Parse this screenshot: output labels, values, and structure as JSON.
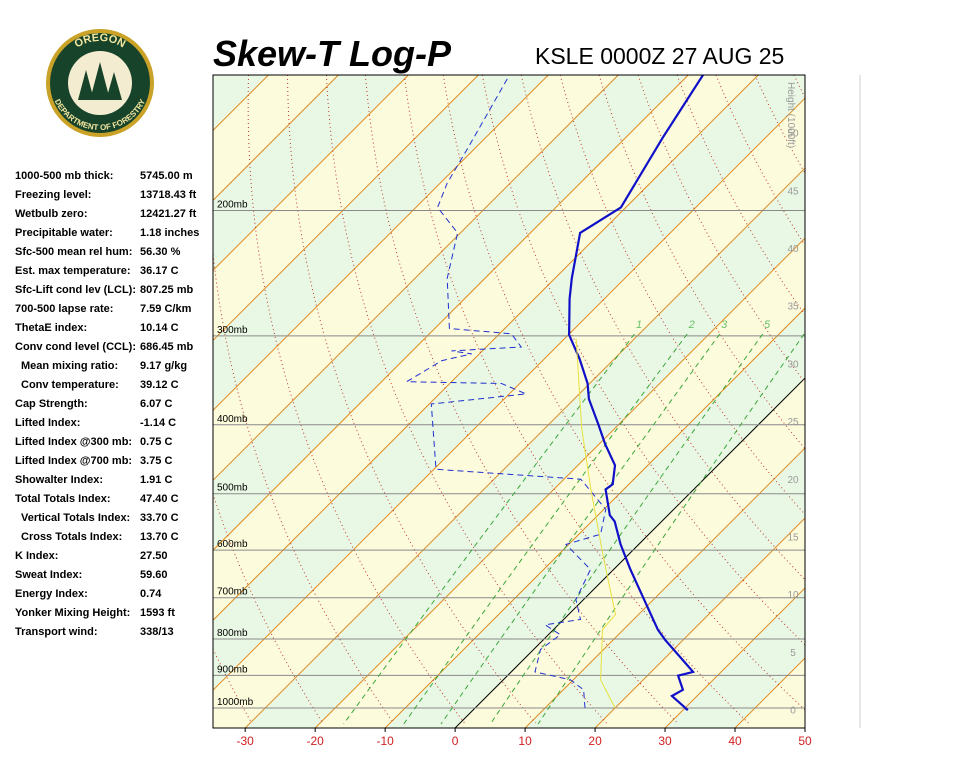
{
  "logo": {
    "top": "OREGON",
    "bottom": "DEPARTMENT OF FORESTRY"
  },
  "stats": [
    [
      "1000-500 mb thick:",
      "5745.00 m"
    ],
    [
      "Freezing level:",
      "13718.43 ft"
    ],
    [
      "Wetbulb zero:",
      "12421.27 ft"
    ],
    [
      "Precipitable water:",
      "1.18 inches"
    ],
    [
      "Sfc-500 mean rel hum:",
      "56.30 %"
    ],
    [
      "Est. max temperature:",
      "36.17 C"
    ],
    [
      "Sfc-Lift cond lev (LCL):",
      "807.25 mb"
    ],
    [
      "700-500 lapse rate:",
      "7.59 C/km"
    ],
    [
      "ThetaE index:",
      "10.14 C"
    ],
    [
      "Conv cond level (CCL):",
      "686.45 mb"
    ],
    [
      "Mean mixing ratio:",
      "9.17 g/kg"
    ],
    [
      "Conv temperature:",
      "39.12 C"
    ],
    [
      "Cap Strength:",
      "6.07 C"
    ],
    [
      "Lifted Index:",
      "-1.14 C"
    ],
    [
      "Lifted Index @300 mb:",
      "0.75 C"
    ],
    [
      "Lifted Index @700 mb:",
      "3.75 C"
    ],
    [
      "Showalter Index:",
      "1.91 C"
    ],
    [
      "Total Totals Index:",
      "47.40 C"
    ],
    [
      "Vertical Totals Index:",
      "33.70 C"
    ],
    [
      "Cross Totals Index:",
      "13.70 C"
    ],
    [
      "K Index:",
      "27.50"
    ],
    [
      "Sweat Index:",
      "59.60"
    ],
    [
      "Energy Index:",
      "0.74"
    ],
    [
      "Yonker Mixing Height:",
      "1593 ft"
    ],
    [
      "Transport wind:",
      "338/13"
    ]
  ],
  "chart_data": {
    "type": "skewt",
    "title": "Skew-T Log-P",
    "subtitle": "KSLE 0000Z 27 AUG 25",
    "xlim": [
      -34.6,
      50
    ],
    "xticks": [
      -30,
      -20,
      -10,
      0,
      10,
      20,
      30,
      40,
      50
    ],
    "ylim": [
      1067,
      129
    ],
    "log_y": true,
    "yticks": [
      {
        "value": 200,
        "label": "200mb"
      },
      {
        "value": 300,
        "label": "300mb"
      },
      {
        "value": 400,
        "label": "400mb"
      },
      {
        "value": 500,
        "label": "500mb"
      },
      {
        "value": 600,
        "label": "600mb"
      },
      {
        "value": 700,
        "label": "700mb"
      },
      {
        "value": 800,
        "label": "800mb"
      },
      {
        "value": 900,
        "label": "900mb"
      },
      {
        "value": 1000,
        "label": "1000mb"
      }
    ],
    "y2label": "Height (1000ft)",
    "y2lim": [
      -1.6,
      55
    ],
    "y2ticks": [
      0,
      5,
      10,
      15,
      20,
      25,
      30,
      35,
      40,
      45,
      50
    ],
    "mixing_ratios": [
      1,
      2,
      3,
      5,
      8
    ],
    "series": [
      {
        "color": "#1010c8",
        "dash": false,
        "x": [
          30.0,
          30.7,
          26.4,
          27.1,
          24.4,
          26.0,
          17.4,
          14.9,
          2.4,
          -2.6,
          -6.7,
          -8.3,
          -12.6,
          -12.3,
          -14.7,
          -19.1,
          -23.0,
          -27.9,
          -30.3,
          -35.0,
          -39.9,
          -45.0,
          -47.6,
          -52.9,
          -50.7,
          -54.7,
          -57.9
        ],
        "values": [
          1000,
          1007,
          962,
          943,
          901,
          890,
          802,
          776,
          639,
          589,
          547,
          536,
          493,
          485,
          456,
          426,
          399,
          368,
          350,
          323,
          299,
          266,
          249,
          215,
          198,
          158,
          129
        ]
      },
      {
        "color": "#2030d0",
        "dash": true,
        "x": [
          15.7,
          12.9,
          9.6,
          3.4,
          1.0,
          1.7,
          -1.9,
          2.4,
          -1.1,
          -3.3,
          -10.4,
          -6.9,
          -9.7,
          -17.6,
          -39.7,
          -49.7,
          -37.6,
          -42.6,
          -56.4,
          -54.4,
          -51.1,
          -54.4,
          -45.0,
          -48.3,
          -57.9,
          -65.4,
          -70.4,
          -76.9,
          -79.0,
          -81.1,
          -85.4
        ],
        "values": [
          1000,
          943,
          913,
          890,
          828,
          789,
          764,
          751,
          704,
          639,
          589,
          570,
          526,
          477,
          462,
          374,
          362,
          350,
          348,
          325,
          318,
          315,
          311,
          298,
          293,
          249,
          215,
          198,
          183,
          163,
          130
        ]
      },
      {
        "color": "#e8e040",
        "dash": false,
        "x": [
          20.0,
          13.9,
          7.0,
          6.7,
          -1.1,
          -5.4,
          -14.7,
          -24.7,
          -38.3
        ],
        "values": [
          1000,
          913,
          776,
          739,
          639,
          589,
          493,
          405,
          303
        ]
      }
    ]
  }
}
